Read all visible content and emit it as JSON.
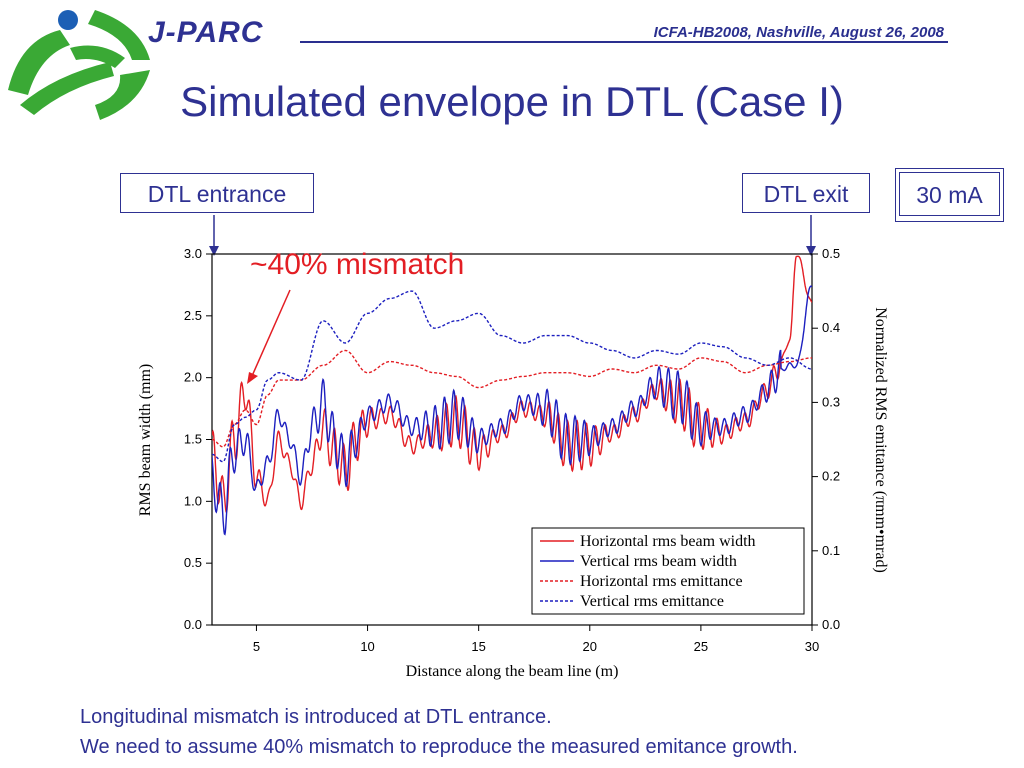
{
  "header": {
    "logo_text": "J-PARC",
    "conference": "ICFA-HB2008, Nashville, August 26, 2008"
  },
  "title": "Simulated envelope in DTL (Case I)",
  "annotations": {
    "entrance": "DTL entrance",
    "exit": "DTL exit",
    "current": "30 mA",
    "mismatch": "~40% mismatch"
  },
  "footer": {
    "line1": "Longitudinal mismatch is introduced at DTL entrance.",
    "line2": "We need to assume 40% mismatch to reproduce the measured emitance growth."
  },
  "colors": {
    "title": "#2e3192",
    "horizontal": "#e31e24",
    "vertical": "#1c1fbf",
    "logo": "#3aa935"
  },
  "chart_data": {
    "type": "line",
    "xlabel": "Distance along the beam line (m)",
    "ylabel": "RMS beam width (mm)",
    "y2label": "Normalized RMS emittance (πmm•mrad)",
    "xlim": [
      3,
      30
    ],
    "ylim": [
      0,
      3
    ],
    "y2lim": [
      0,
      0.5
    ],
    "xticks": [
      "5",
      "10",
      "15",
      "20",
      "25",
      "30"
    ],
    "yticks": [
      "0.0",
      "0.5",
      "1.0",
      "1.5",
      "2.0",
      "2.5",
      "3.0"
    ],
    "y2ticks": [
      "0.0",
      "0.1",
      "0.2",
      "0.3",
      "0.4",
      "0.5"
    ],
    "legend_position": "bottom-right",
    "series": [
      {
        "name": "Horizontal rms beam width",
        "axis": "left",
        "style": "solid",
        "color": "#e31e24",
        "x": [
          3,
          3.5,
          4,
          4.5,
          5,
          5.5,
          6,
          6.5,
          7,
          7.5,
          8,
          8.5,
          9,
          9.5,
          10,
          11,
          12,
          13,
          14,
          15,
          16,
          17,
          18,
          19,
          20,
          21,
          22,
          23,
          24,
          25,
          26,
          27,
          28,
          28.5,
          29,
          29.3,
          30
        ],
        "y": [
          1.4,
          1.0,
          1.5,
          1.9,
          1.2,
          1.0,
          1.5,
          1.3,
          1.0,
          1.3,
          1.6,
          1.4,
          1.25,
          1.5,
          1.65,
          1.7,
          1.45,
          1.55,
          1.65,
          1.4,
          1.55,
          1.75,
          1.7,
          1.45,
          1.45,
          1.55,
          1.7,
          1.9,
          1.8,
          1.6,
          1.55,
          1.65,
          1.9,
          2.1,
          2.3,
          3.0,
          2.6
        ]
      },
      {
        "name": "Vertical rms beam width",
        "axis": "left",
        "style": "solid",
        "color": "#1c1fbf",
        "x": [
          3,
          3.5,
          4,
          4.5,
          5,
          5.5,
          6,
          6.5,
          7,
          7.5,
          8,
          8.5,
          9,
          9.5,
          10,
          11,
          12,
          13,
          14,
          15,
          16,
          17,
          18,
          19,
          20,
          21,
          22,
          23,
          24,
          25,
          26,
          27,
          28,
          28.5,
          29,
          29.3,
          30
        ],
        "y": [
          1.2,
          0.9,
          1.4,
          1.5,
          1.1,
          1.3,
          1.7,
          1.5,
          1.2,
          1.6,
          1.8,
          1.5,
          1.3,
          1.5,
          1.7,
          1.8,
          1.6,
          1.6,
          1.7,
          1.5,
          1.6,
          1.8,
          1.75,
          1.5,
          1.5,
          1.6,
          1.75,
          1.95,
          1.85,
          1.6,
          1.6,
          1.7,
          1.9,
          2.05,
          2.1,
          2.1,
          2.75
        ]
      },
      {
        "name": "Horizontal rms emittance",
        "axis": "right",
        "style": "dashed",
        "color": "#e31e24",
        "x": [
          3,
          3.5,
          4,
          4.5,
          5,
          5.5,
          6,
          7,
          8,
          9,
          10,
          11,
          12,
          13,
          14,
          15,
          16,
          17,
          18,
          19,
          20,
          21,
          22,
          23,
          24,
          25,
          26,
          27,
          28,
          29,
          30
        ],
        "y": [
          0.25,
          0.24,
          0.27,
          0.29,
          0.27,
          0.31,
          0.33,
          0.33,
          0.35,
          0.37,
          0.34,
          0.355,
          0.35,
          0.34,
          0.335,
          0.32,
          0.33,
          0.335,
          0.34,
          0.34,
          0.335,
          0.345,
          0.34,
          0.35,
          0.345,
          0.36,
          0.355,
          0.34,
          0.35,
          0.355,
          0.36
        ]
      },
      {
        "name": "Vertical rms emittance",
        "axis": "right",
        "style": "dashed",
        "color": "#1c1fbf",
        "x": [
          3,
          3.5,
          4,
          4.5,
          5,
          5.5,
          6,
          7,
          8,
          9,
          10,
          11,
          12,
          13,
          14,
          15,
          16,
          17,
          18,
          19,
          20,
          21,
          22,
          23,
          24,
          25,
          26,
          27,
          28,
          29,
          30
        ],
        "y": [
          0.23,
          0.22,
          0.27,
          0.28,
          0.29,
          0.33,
          0.34,
          0.33,
          0.41,
          0.38,
          0.42,
          0.44,
          0.45,
          0.4,
          0.41,
          0.42,
          0.39,
          0.38,
          0.39,
          0.39,
          0.38,
          0.37,
          0.36,
          0.37,
          0.365,
          0.38,
          0.375,
          0.36,
          0.35,
          0.36,
          0.345
        ]
      }
    ]
  }
}
